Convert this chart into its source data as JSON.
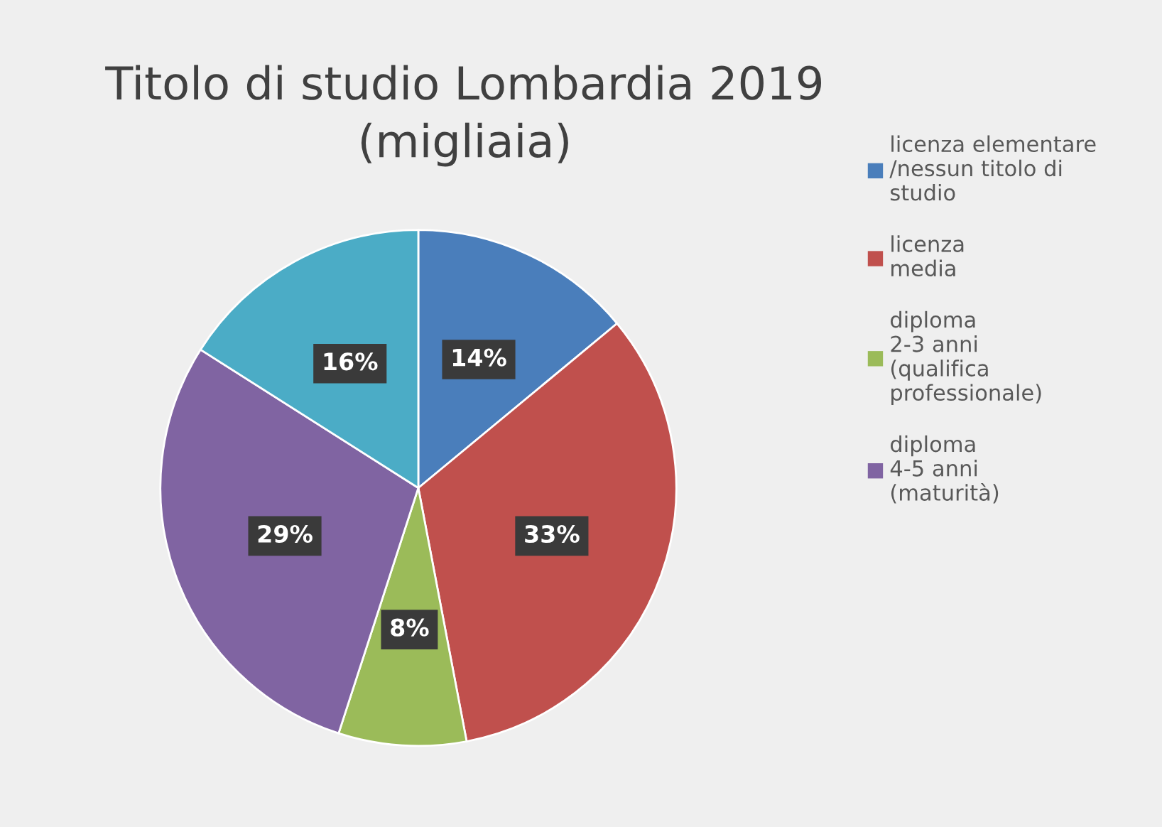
{
  "chart_data": {
    "type": "pie",
    "title": "Titolo di studio Lombardia 2019\n(migliaia)",
    "categories": [
      "licenza elementare\n/nessun titolo di\nstudio",
      "licenza\nmedia",
      "diploma\n2-3 anni\n(qualifica\nprofessionale)",
      "diploma\n4-5 anni\n(maturità)",
      null
    ],
    "values": [
      14,
      33,
      8,
      29,
      16
    ],
    "value_labels": [
      "14%",
      "33%",
      "8%",
      "29%",
      "16%"
    ],
    "colors": [
      "#4a7ebb",
      "#c0504d",
      "#9bbb59",
      "#8064a2",
      "#4bacc6"
    ],
    "legend": "right"
  }
}
